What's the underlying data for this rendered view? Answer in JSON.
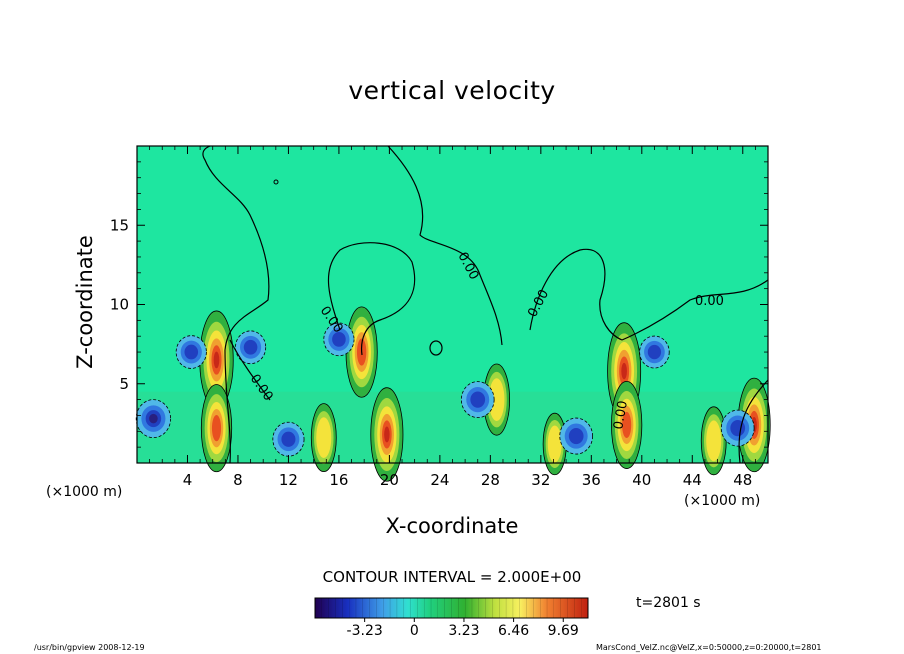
{
  "chart_data": {
    "type": "heatmap",
    "title": "vertical velocity",
    "xlabel": "X-coordinate",
    "ylabel": "Z-coordinate",
    "x_unit": "(×1000 m)",
    "xlim": [
      0,
      50
    ],
    "ylim": [
      0,
      20
    ],
    "x_ticks": [
      4,
      8,
      12,
      16,
      20,
      24,
      28,
      32,
      36,
      40,
      44,
      48
    ],
    "y_ticks": [
      5,
      10,
      15
    ],
    "contour_interval": "CONTOUR INTERVAL = 2.000E+00",
    "contour_labels": [
      "0.00",
      "0.00",
      "0.00",
      "0.00",
      "0.00",
      "0.00"
    ],
    "colorbar_ticks": [
      "-3.23",
      "0",
      "3.23",
      "6.46",
      "9.69"
    ],
    "colorbar_range": [
      -6.46,
      11.3
    ],
    "colors": {
      "background": "#1ee6a0",
      "zero": "#25e8a4",
      "updraft_mid": "#f4e33a",
      "updraft_high": "#e85020",
      "downdraft": "#2050d8"
    },
    "features": [
      {
        "kind": "updraft",
        "x": 6.3,
        "z": 6.5,
        "peak": 9.7
      },
      {
        "kind": "updraft",
        "x": 6.3,
        "z": 2.2,
        "peak": 8.0
      },
      {
        "kind": "updraft",
        "x": 17.8,
        "z": 7.0,
        "peak": 8.5
      },
      {
        "kind": "updraft",
        "x": 19.8,
        "z": 1.8,
        "peak": 9.0
      },
      {
        "kind": "updraft",
        "x": 14.8,
        "z": 1.6,
        "peak": 5.0
      },
      {
        "kind": "updraft",
        "x": 28.5,
        "z": 4.0,
        "peak": 5.5
      },
      {
        "kind": "updraft",
        "x": 38.6,
        "z": 5.8,
        "peak": 9.5
      },
      {
        "kind": "updraft",
        "x": 38.8,
        "z": 2.4,
        "peak": 8.0
      },
      {
        "kind": "updraft",
        "x": 48.9,
        "z": 2.4,
        "peak": 9.0
      },
      {
        "kind": "updraft",
        "x": 45.7,
        "z": 1.4,
        "peak": 5.0
      },
      {
        "kind": "updraft",
        "x": 33.1,
        "z": 1.2,
        "peak": 4.0
      },
      {
        "kind": "downdraft",
        "x": 1.3,
        "z": 2.8,
        "peak": -4.5
      },
      {
        "kind": "downdraft",
        "x": 12.0,
        "z": 1.5,
        "peak": -3.5
      },
      {
        "kind": "downdraft",
        "x": 27.0,
        "z": 4.0,
        "peak": -4.0
      },
      {
        "kind": "downdraft",
        "x": 34.8,
        "z": 1.7,
        "peak": -4.0
      },
      {
        "kind": "downdraft",
        "x": 47.6,
        "z": 2.2,
        "peak": -4.0
      },
      {
        "kind": "downdraft",
        "x": 4.3,
        "z": 7.0,
        "peak": -3.2
      },
      {
        "kind": "downdraft",
        "x": 9.0,
        "z": 7.3,
        "peak": -3.2
      },
      {
        "kind": "downdraft",
        "x": 16.0,
        "z": 7.8,
        "peak": -3.2
      },
      {
        "kind": "downdraft",
        "x": 41.0,
        "z": 7.0,
        "peak": -3.0
      }
    ]
  },
  "time_label": "t=2801 s",
  "footer_left": "/usr/bin/gpview  2008-12-19",
  "footer_right": "MarsCond_VelZ.nc@VelZ,x=0:50000,z=0:20000,t=2801"
}
